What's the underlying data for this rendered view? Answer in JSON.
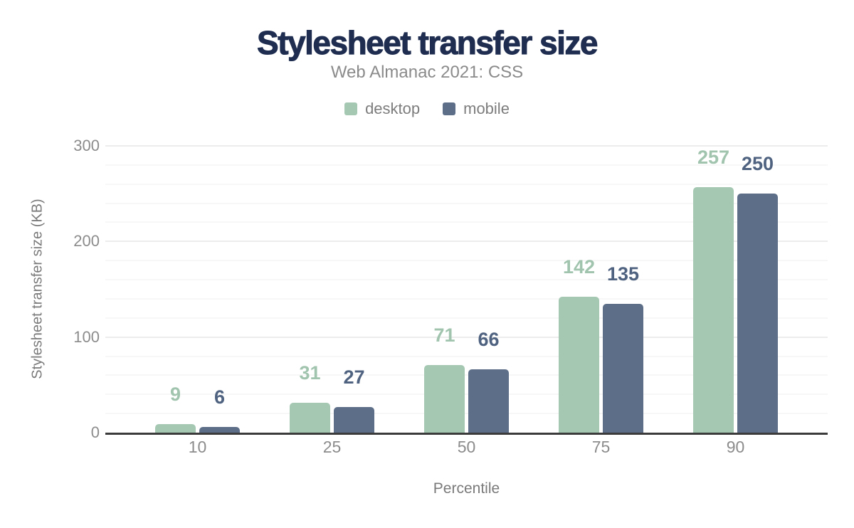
{
  "chart_data": {
    "type": "bar",
    "title": "Stylesheet transfer size",
    "subtitle": "Web Almanac 2021: CSS",
    "xlabel": "Percentile",
    "ylabel": "Stylesheet transfer size (KB)",
    "categories": [
      "10",
      "25",
      "50",
      "75",
      "90"
    ],
    "series": [
      {
        "name": "desktop",
        "color": "#a5c8b3",
        "label_color": "#a0c4ae",
        "values": [
          9,
          31,
          71,
          142,
          257
        ]
      },
      {
        "name": "mobile",
        "color": "#5d6f88",
        "label_color": "#4f6380",
        "values": [
          6,
          27,
          66,
          135,
          250
        ]
      }
    ],
    "ylim": [
      0,
      300
    ],
    "yticks": [
      0,
      100,
      200,
      300
    ],
    "minor_grid_step": 20,
    "grid": true,
    "legend_position": "top"
  },
  "colors": {
    "title_color": "#1f2d50",
    "subtitle_color": "#8b8b8b",
    "axis_text": "#8c8c8c",
    "axis_title": "#7a7a7a",
    "axis_line": "#3b3b3b",
    "grid_major": "#ececec",
    "grid_minor": "#f7f7f7",
    "background": "#ffffff"
  }
}
